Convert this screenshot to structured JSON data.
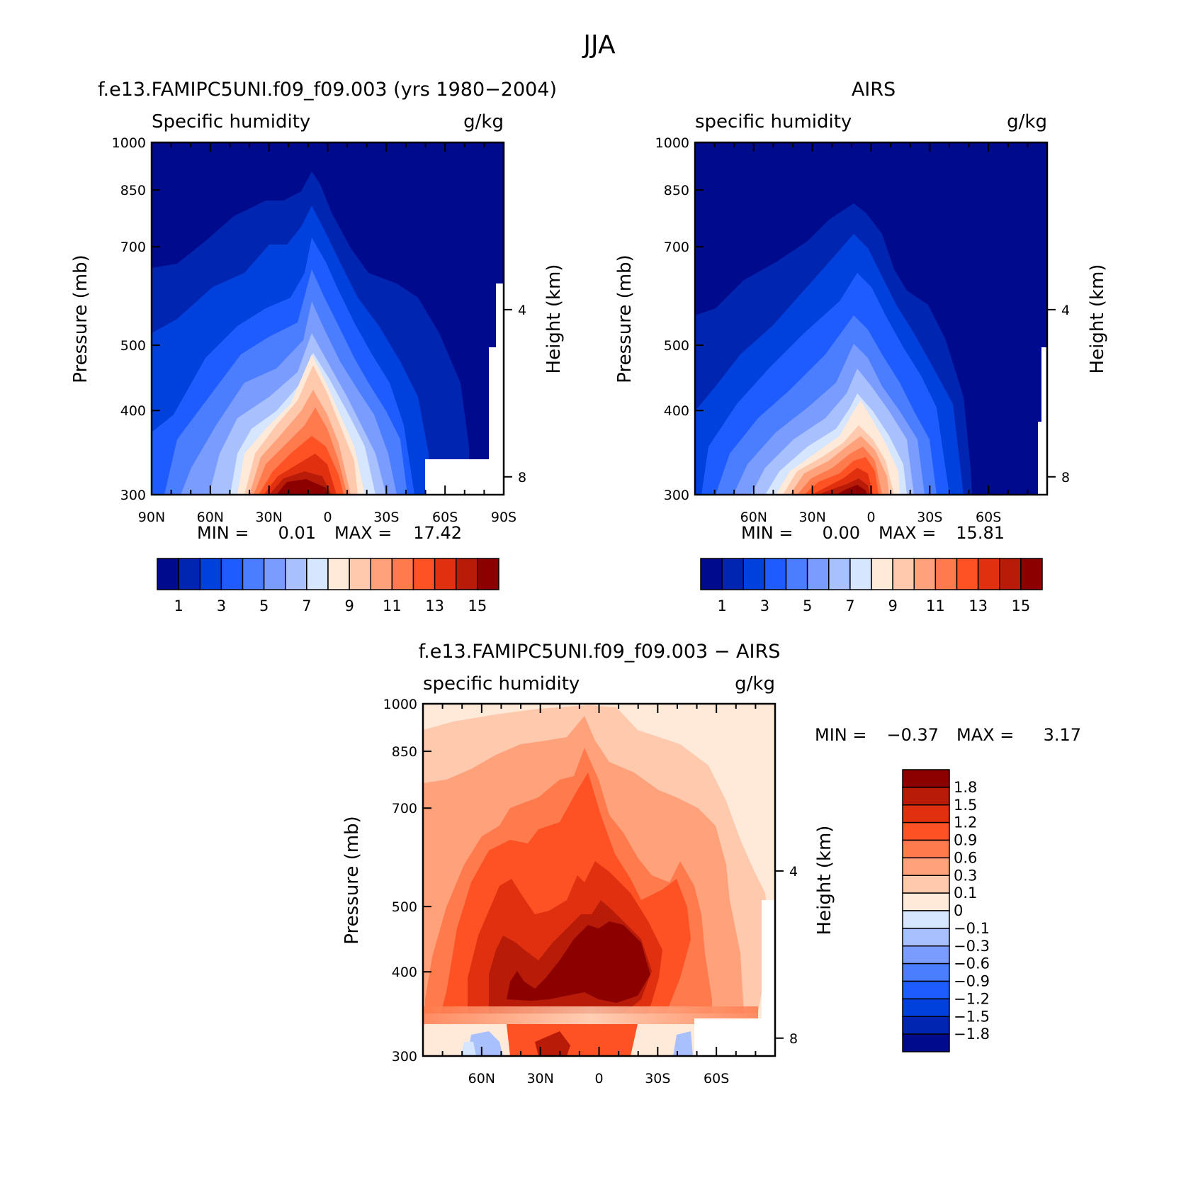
{
  "figure": {
    "title": "JJA"
  },
  "colors": {
    "abs_palette": [
      "#000a8c",
      "#0025b0",
      "#0040dc",
      "#1f5cff",
      "#4a7dff",
      "#7a9cff",
      "#a9c0ff",
      "#d6e6ff",
      "#ffe9d8",
      "#ffc9ad",
      "#ffa27c",
      "#ff7a4c",
      "#ff5224",
      "#e03010",
      "#b81c08",
      "#8c0000"
    ],
    "diff_palette": [
      "#000a8c",
      "#0025b0",
      "#0040dc",
      "#1f5cff",
      "#4a7dff",
      "#7a9cff",
      "#a9c0ff",
      "#d6e6ff",
      "#ffe9d8",
      "#ffc9ad",
      "#ffa27c",
      "#ff7a4c",
      "#ff5224",
      "#e03010",
      "#b81c08",
      "#8c0000"
    ]
  },
  "chart_data": [
    {
      "type": "heatmap",
      "panel": "top-left",
      "title": "f.e13.FAMIPC5UNI.f09_f09.003 (yrs 1980−2004)",
      "left_string": "Specific humidity",
      "right_string": "g/kg",
      "ylabel": "Pressure (mb)",
      "ylabel_right": "Height (km)",
      "x_ticks": [
        "90N",
        "60N",
        "30N",
        "0",
        "30S",
        "60S",
        "90S"
      ],
      "y_ticks": [
        "300",
        "400",
        "500",
        "700",
        "850",
        "1000"
      ],
      "y_ticks_right": [
        "8",
        "4"
      ],
      "ylim": [
        1000,
        300
      ],
      "x_range": [
        -90,
        90
      ],
      "min_label": "MIN =",
      "min": "0.01",
      "max_label": "MAX =",
      "max": "17.42",
      "colorbar_levels": [
        "1",
        "3",
        "5",
        "7",
        "9",
        "11",
        "13",
        "15"
      ],
      "peak": {
        "lat": 10,
        "value": 17.42
      },
      "profile_lats": [
        -90,
        -60,
        -30,
        -10,
        0,
        30,
        60,
        90
      ],
      "contour_top_pressure": [
        550,
        430,
        395,
        345,
        405,
        460,
        520,
        600
      ]
    },
    {
      "type": "heatmap",
      "panel": "top-right",
      "title": "AIRS",
      "left_string": "specific humidity",
      "right_string": "g/kg",
      "ylabel": "Pressure (mb)",
      "ylabel_right": "Height (km)",
      "x_ticks": [
        "60N",
        "30N",
        "0",
        "30S",
        "60S"
      ],
      "y_ticks": [
        "300",
        "400",
        "500",
        "700",
        "850",
        "1000"
      ],
      "y_ticks_right": [
        "8",
        "4"
      ],
      "ylim": [
        1000,
        300
      ],
      "x_range": [
        -90,
        90
      ],
      "min_label": "MIN =",
      "min": "0.00",
      "max_label": "MAX =",
      "max": "15.81",
      "colorbar_levels": [
        "1",
        "3",
        "5",
        "7",
        "9",
        "11",
        "13",
        "15"
      ],
      "peak": {
        "lat": 10,
        "value": 15.81
      }
    },
    {
      "type": "heatmap",
      "panel": "bottom",
      "title": "f.e13.FAMIPC5UNI.f09_f09.003 − AIRS",
      "left_string": "specific humidity",
      "right_string": "g/kg",
      "ylabel": "Pressure (mb)",
      "ylabel_right": "Height (km)",
      "x_ticks": [
        "60N",
        "30N",
        "0",
        "30S",
        "60S"
      ],
      "y_ticks": [
        "300",
        "400",
        "500",
        "700",
        "850",
        "1000"
      ],
      "y_ticks_right": [
        "8",
        "4"
      ],
      "ylim": [
        1000,
        300
      ],
      "x_range": [
        -90,
        90
      ],
      "min_label": "MIN =",
      "min": "−0.37",
      "max_label": "MAX =",
      "max": "3.17",
      "colorbar_levels": [
        "1.8",
        "1.5",
        "1.2",
        "0.9",
        "0.6",
        "0.3",
        "0.1",
        "0",
        "−0.1",
        "−0.3",
        "−0.6",
        "−0.9",
        "−1.2",
        "−1.5",
        "−1.8"
      ]
    }
  ]
}
